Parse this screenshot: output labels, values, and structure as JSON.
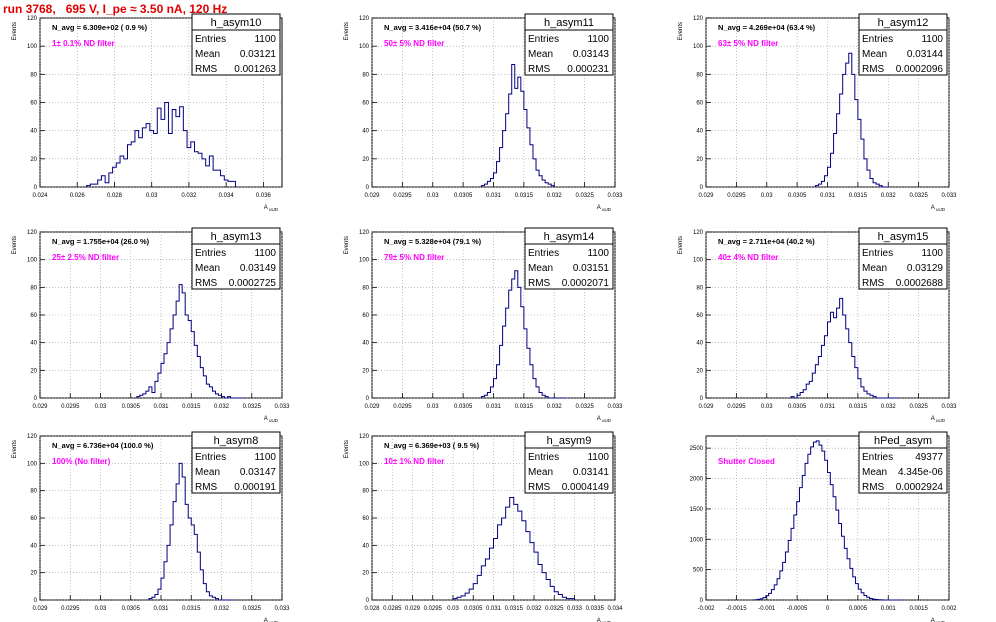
{
  "page_title": "run 3768,   695 V, I_pe ≈ 3.50 nA, 120 Hz",
  "stats_labels": {
    "entries": "Entries",
    "mean": "Mean",
    "rms": "RMS"
  },
  "colors": {
    "histogram": "#000080",
    "annotation": "#ff00ff",
    "title": "#e00000",
    "grid": "#9a9a9a"
  },
  "chart_data": [
    {
      "type": "bar",
      "name": "h_asym10",
      "ylabel": "Events",
      "xlabel": "A_uUD",
      "navg": "N_avg = 6.309e+02 ( 0.9 %)",
      "annotation": "1± 0.1% ND filter",
      "stats": {
        "entries": "1100",
        "mean": "0.03121",
        "rms": "0.001263"
      },
      "xlim": [
        0.024,
        0.037
      ],
      "ylim": [
        0,
        120
      ],
      "xticks": [
        "0.024",
        "0.026",
        "0.028",
        "0.03",
        "0.032",
        "0.034",
        "0.036"
      ],
      "xtick_values": [
        0.024,
        0.026,
        0.028,
        0.03,
        0.032,
        0.034,
        0.036
      ],
      "yticks": [
        "0",
        "20",
        "40",
        "60",
        "80",
        "100",
        "120"
      ],
      "ytick_values": [
        0,
        20,
        40,
        60,
        80,
        100,
        120
      ],
      "bin_range": [
        0.0265,
        0.0345
      ],
      "values": [
        1,
        2,
        2,
        5,
        8,
        3,
        10,
        14,
        17,
        22,
        20,
        30,
        32,
        40,
        35,
        42,
        45,
        40,
        38,
        56,
        48,
        60,
        38,
        55,
        50,
        57,
        40,
        28,
        32,
        25,
        24,
        20,
        15,
        22,
        12,
        12,
        8,
        5,
        4,
        4
      ]
    },
    {
      "type": "bar",
      "name": "h_asym11",
      "ylabel": "Events",
      "xlabel": "A_uUD",
      "navg": "N_avg = 3.416e+04 (50.7 %)",
      "annotation": "50± 5% ND filter",
      "stats": {
        "entries": "1100",
        "mean": "0.03143",
        "rms": "0.000231"
      },
      "xlim": [
        0.029,
        0.033
      ],
      "ylim": [
        0,
        120
      ],
      "xticks": [
        "0.029",
        "0.0295",
        "0.03",
        "0.0305",
        "0.031",
        "0.0315",
        "0.032",
        "0.0325",
        "0.033"
      ],
      "xtick_values": [
        0.029,
        0.0295,
        0.03,
        0.0305,
        0.031,
        0.0315,
        0.032,
        0.0325,
        0.033
      ],
      "yticks": [
        "0",
        "20",
        "40",
        "60",
        "80",
        "100",
        "120"
      ],
      "ytick_values": [
        0,
        20,
        40,
        60,
        80,
        100,
        120
      ],
      "bin_range": [
        0.0308,
        0.032
      ],
      "values": [
        1,
        2,
        4,
        6,
        10,
        18,
        28,
        40,
        52,
        66,
        87,
        70,
        78,
        68,
        55,
        42,
        30,
        20,
        12,
        8,
        5,
        3,
        2,
        1
      ]
    },
    {
      "type": "bar",
      "name": "h_asym12",
      "ylabel": "Events",
      "xlabel": "A_uUD",
      "navg": "N_avg = 4.269e+04 (63.4 %)",
      "annotation": "63± 5% ND filter",
      "stats": {
        "entries": "1100",
        "mean": "0.03144",
        "rms": "0.0002096"
      },
      "xlim": [
        0.029,
        0.033
      ],
      "ylim": [
        0,
        120
      ],
      "xticks": [
        "0.029",
        "0.0295",
        "0.03",
        "0.0305",
        "0.031",
        "0.0315",
        "0.032",
        "0.0325",
        "0.033"
      ],
      "xtick_values": [
        0.029,
        0.0295,
        0.03,
        0.0305,
        0.031,
        0.0315,
        0.032,
        0.0325,
        0.033
      ],
      "yticks": [
        "0",
        "20",
        "40",
        "60",
        "80",
        "100",
        "120"
      ],
      "ytick_values": [
        0,
        20,
        40,
        60,
        80,
        100,
        120
      ],
      "bin_range": [
        0.0308,
        0.032
      ],
      "values": [
        1,
        2,
        4,
        8,
        14,
        24,
        38,
        52,
        66,
        80,
        88,
        95,
        80,
        62,
        48,
        34,
        20,
        12,
        6,
        3,
        2,
        1,
        0,
        0
      ]
    },
    {
      "type": "bar",
      "name": "h_asym13",
      "ylabel": "Events",
      "xlabel": "A_uUD",
      "navg": "N_avg = 1.755e+04 (26.0 %)",
      "annotation": "25± 2.5% ND filter",
      "stats": {
        "entries": "1100",
        "mean": "0.03149",
        "rms": "0.0002725"
      },
      "xlim": [
        0.029,
        0.033
      ],
      "ylim": [
        0,
        120
      ],
      "xticks": [
        "0.029",
        "0.0295",
        "0.03",
        "0.0305",
        "0.031",
        "0.0315",
        "0.032",
        "0.0325",
        "0.033"
      ],
      "xtick_values": [
        0.029,
        0.0295,
        0.03,
        0.0305,
        0.031,
        0.0315,
        0.032,
        0.0325,
        0.033
      ],
      "yticks": [
        "0",
        "20",
        "40",
        "60",
        "80",
        "100",
        "120"
      ],
      "ytick_values": [
        0,
        20,
        40,
        60,
        80,
        100,
        120
      ],
      "bin_range": [
        0.0306,
        0.0324
      ],
      "values": [
        1,
        2,
        3,
        5,
        8,
        4,
        12,
        18,
        25,
        32,
        40,
        50,
        60,
        70,
        82,
        76,
        60,
        56,
        48,
        38,
        30,
        22,
        16,
        10,
        8,
        5,
        3,
        2,
        1,
        0,
        1,
        0,
        0,
        0,
        0,
        0
      ]
    },
    {
      "type": "bar",
      "name": "h_asym14",
      "ylabel": "Events",
      "xlabel": "A_uUD",
      "navg": "N_avg = 5.328e+04 (79.1 %)",
      "annotation": "79± 5% ND filter",
      "stats": {
        "entries": "1100",
        "mean": "0.03151",
        "rms": "0.0002071"
      },
      "xlim": [
        0.029,
        0.033
      ],
      "ylim": [
        0,
        120
      ],
      "xticks": [
        "0.029",
        "0.0295",
        "0.03",
        "0.0305",
        "0.031",
        "0.0315",
        "0.032",
        "0.0325",
        "0.033"
      ],
      "xtick_values": [
        0.029,
        0.0295,
        0.03,
        0.0305,
        0.031,
        0.0315,
        0.032,
        0.0325,
        0.033
      ],
      "yticks": [
        "0",
        "20",
        "40",
        "60",
        "80",
        "100",
        "120"
      ],
      "ytick_values": [
        0,
        20,
        40,
        60,
        80,
        100,
        120
      ],
      "bin_range": [
        0.0308,
        0.0322
      ],
      "values": [
        1,
        2,
        4,
        8,
        14,
        24,
        38,
        52,
        65,
        78,
        86,
        92,
        80,
        66,
        50,
        36,
        24,
        14,
        8,
        4,
        2,
        1,
        0,
        0,
        0,
        0,
        0,
        0
      ]
    },
    {
      "type": "bar",
      "name": "h_asym15",
      "ylabel": "Events",
      "xlabel": "A_uUD",
      "navg": "N_avg = 2.711e+04 (40.2 %)",
      "annotation": "40± 4% ND filter",
      "stats": {
        "entries": "1100",
        "mean": "0.03129",
        "rms": "0.0002688"
      },
      "xlim": [
        0.029,
        0.033
      ],
      "ylim": [
        0,
        120
      ],
      "xticks": [
        "0.029",
        "0.0295",
        "0.03",
        "0.0305",
        "0.031",
        "0.0315",
        "0.032",
        "0.0325",
        "0.033"
      ],
      "xtick_values": [
        0.029,
        0.0295,
        0.03,
        0.0305,
        0.031,
        0.0315,
        0.032,
        0.0325,
        0.033
      ],
      "yticks": [
        "0",
        "20",
        "40",
        "60",
        "80",
        "100",
        "120"
      ],
      "ytick_values": [
        0,
        20,
        40,
        60,
        80,
        100,
        120
      ],
      "bin_range": [
        0.0304,
        0.0322
      ],
      "values": [
        1,
        0,
        2,
        4,
        6,
        10,
        12,
        18,
        24,
        30,
        38,
        45,
        55,
        62,
        58,
        65,
        72,
        60,
        50,
        40,
        30,
        22,
        14,
        8,
        5,
        3,
        2,
        1,
        0,
        0,
        0,
        0,
        0,
        0,
        0,
        0
      ]
    },
    {
      "type": "bar",
      "name": "h_asym8",
      "ylabel": "Events",
      "xlabel": "A_uUD",
      "navg": "N_avg = 6.736e+04 (100.0 %)",
      "annotation": "100% (No filter)",
      "stats": {
        "entries": "1100",
        "mean": "0.03147",
        "rms": "0.000191"
      },
      "xlim": [
        0.029,
        0.033
      ],
      "ylim": [
        0,
        120
      ],
      "xticks": [
        "0.029",
        "0.0295",
        "0.03",
        "0.0305",
        "0.031",
        "0.0315",
        "0.032",
        "0.0325",
        "0.033"
      ],
      "xtick_values": [
        0.029,
        0.0295,
        0.03,
        0.0305,
        0.031,
        0.0315,
        0.032,
        0.0325,
        0.033
      ],
      "yticks": [
        "0",
        "20",
        "40",
        "60",
        "80",
        "100",
        "120"
      ],
      "ytick_values": [
        0,
        20,
        40,
        60,
        80,
        100,
        120
      ],
      "bin_range": [
        0.0308,
        0.0322
      ],
      "values": [
        1,
        2,
        4,
        8,
        16,
        28,
        40,
        55,
        72,
        85,
        100,
        90,
        70,
        60,
        55,
        48,
        35,
        22,
        12,
        6,
        3,
        2,
        1,
        0,
        0,
        0,
        0,
        0
      ]
    },
    {
      "type": "bar",
      "name": "h_asym9",
      "ylabel": "Events",
      "xlabel": "A_uUD",
      "navg": "N_avg = 6.369e+03 ( 9.5 %)",
      "annotation": "10± 1% ND filter",
      "stats": {
        "entries": "1100",
        "mean": "0.03141",
        "rms": "0.0004149"
      },
      "xlim": [
        0.028,
        0.034
      ],
      "ylim": [
        0,
        120
      ],
      "xticks": [
        "0.028",
        "0.0285",
        "0.029",
        "0.0295",
        "0.03",
        "0.0305",
        "0.031",
        "0.0315",
        "0.032",
        "0.0325",
        "0.033",
        "0.0335",
        "0.034"
      ],
      "xtick_values": [
        0.028,
        0.0285,
        0.029,
        0.0295,
        0.03,
        0.0305,
        0.031,
        0.0315,
        0.032,
        0.0325,
        0.033,
        0.0335,
        0.034
      ],
      "yticks": [
        "0",
        "20",
        "40",
        "60",
        "80",
        "100",
        "120"
      ],
      "ytick_values": [
        0,
        20,
        40,
        60,
        80,
        100,
        120
      ],
      "bin_range": [
        0.03,
        0.033
      ],
      "values": [
        1,
        2,
        3,
        5,
        8,
        12,
        18,
        25,
        30,
        38,
        45,
        55,
        60,
        68,
        75,
        70,
        65,
        58,
        50,
        42,
        35,
        26,
        20,
        15,
        10,
        6,
        4,
        2,
        1,
        1
      ]
    },
    {
      "type": "bar",
      "name": "hPed_asym",
      "ylabel": "",
      "xlabel": "A_uUD",
      "navg": "",
      "annotation": "Shutter Closed",
      "stats": {
        "entries": "49377",
        "mean": "4.345e-06",
        "rms": "0.0002924"
      },
      "xlim": [
        -0.002,
        0.002
      ],
      "ylim": [
        0,
        2700
      ],
      "xticks": [
        "-0.002",
        "-0.0015",
        "-0.001",
        "-0.0005",
        "0",
        "0.0005",
        "0.001",
        "0.0015",
        "0.002"
      ],
      "xtick_values": [
        -0.002,
        -0.0015,
        -0.001,
        -0.0005,
        0,
        0.0005,
        0.001,
        0.0015,
        0.002
      ],
      "yticks": [
        "0",
        "500",
        "1000",
        "1500",
        "2000",
        "2500"
      ],
      "ytick_values": [
        0,
        500,
        1000,
        1500,
        2000,
        2500
      ],
      "bin_range": [
        -0.0012,
        0.0012
      ],
      "values": [
        5,
        10,
        20,
        40,
        70,
        110,
        170,
        250,
        350,
        480,
        620,
        790,
        980,
        1180,
        1400,
        1620,
        1850,
        2050,
        2250,
        2400,
        2520,
        2600,
        2620,
        2550,
        2450,
        2300,
        2100,
        1900,
        1700,
        1480,
        1260,
        1050,
        850,
        680,
        520,
        380,
        270,
        180,
        120,
        75,
        45,
        25,
        15,
        8,
        4,
        2,
        1,
        0,
        0,
        0,
        0,
        0
      ]
    }
  ]
}
